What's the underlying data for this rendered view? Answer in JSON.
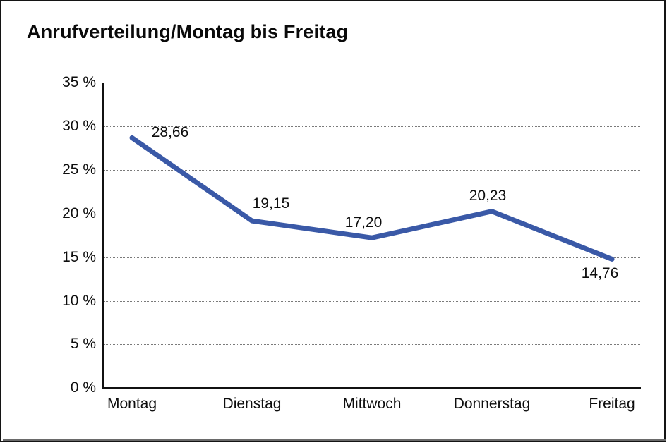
{
  "frame": {
    "border_color": "#141414",
    "bottom_shadow_color": "#6a6a6a",
    "background": "#ffffff"
  },
  "chart_data": {
    "type": "line",
    "title": "Anrufverteilung/Montag bis Freitag",
    "categories": [
      "Montag",
      "Dienstag",
      "Mittwoch",
      "Donnerstag",
      "Freitag"
    ],
    "values": [
      28.66,
      19.15,
      17.2,
      20.23,
      14.76
    ],
    "value_labels": [
      "28,66",
      "19,15",
      "17,20",
      "20,23",
      "14,76"
    ],
    "series_name": "Anrufverteilung",
    "xlabel": "",
    "ylabel": "",
    "ylim": [
      0,
      35
    ],
    "ytick_step": 5,
    "ytick_labels": [
      "35 %",
      "30 %",
      "25 %",
      "20 %",
      "15 %",
      "10 %",
      "5 %",
      "0 %"
    ],
    "grid": "horizontal-dotted",
    "grid_color": "#7a7a7a",
    "legend_position": "none",
    "line_color": "#3A59A7",
    "line_width": 7,
    "marker": "none",
    "label_decimal_separator": "comma"
  }
}
